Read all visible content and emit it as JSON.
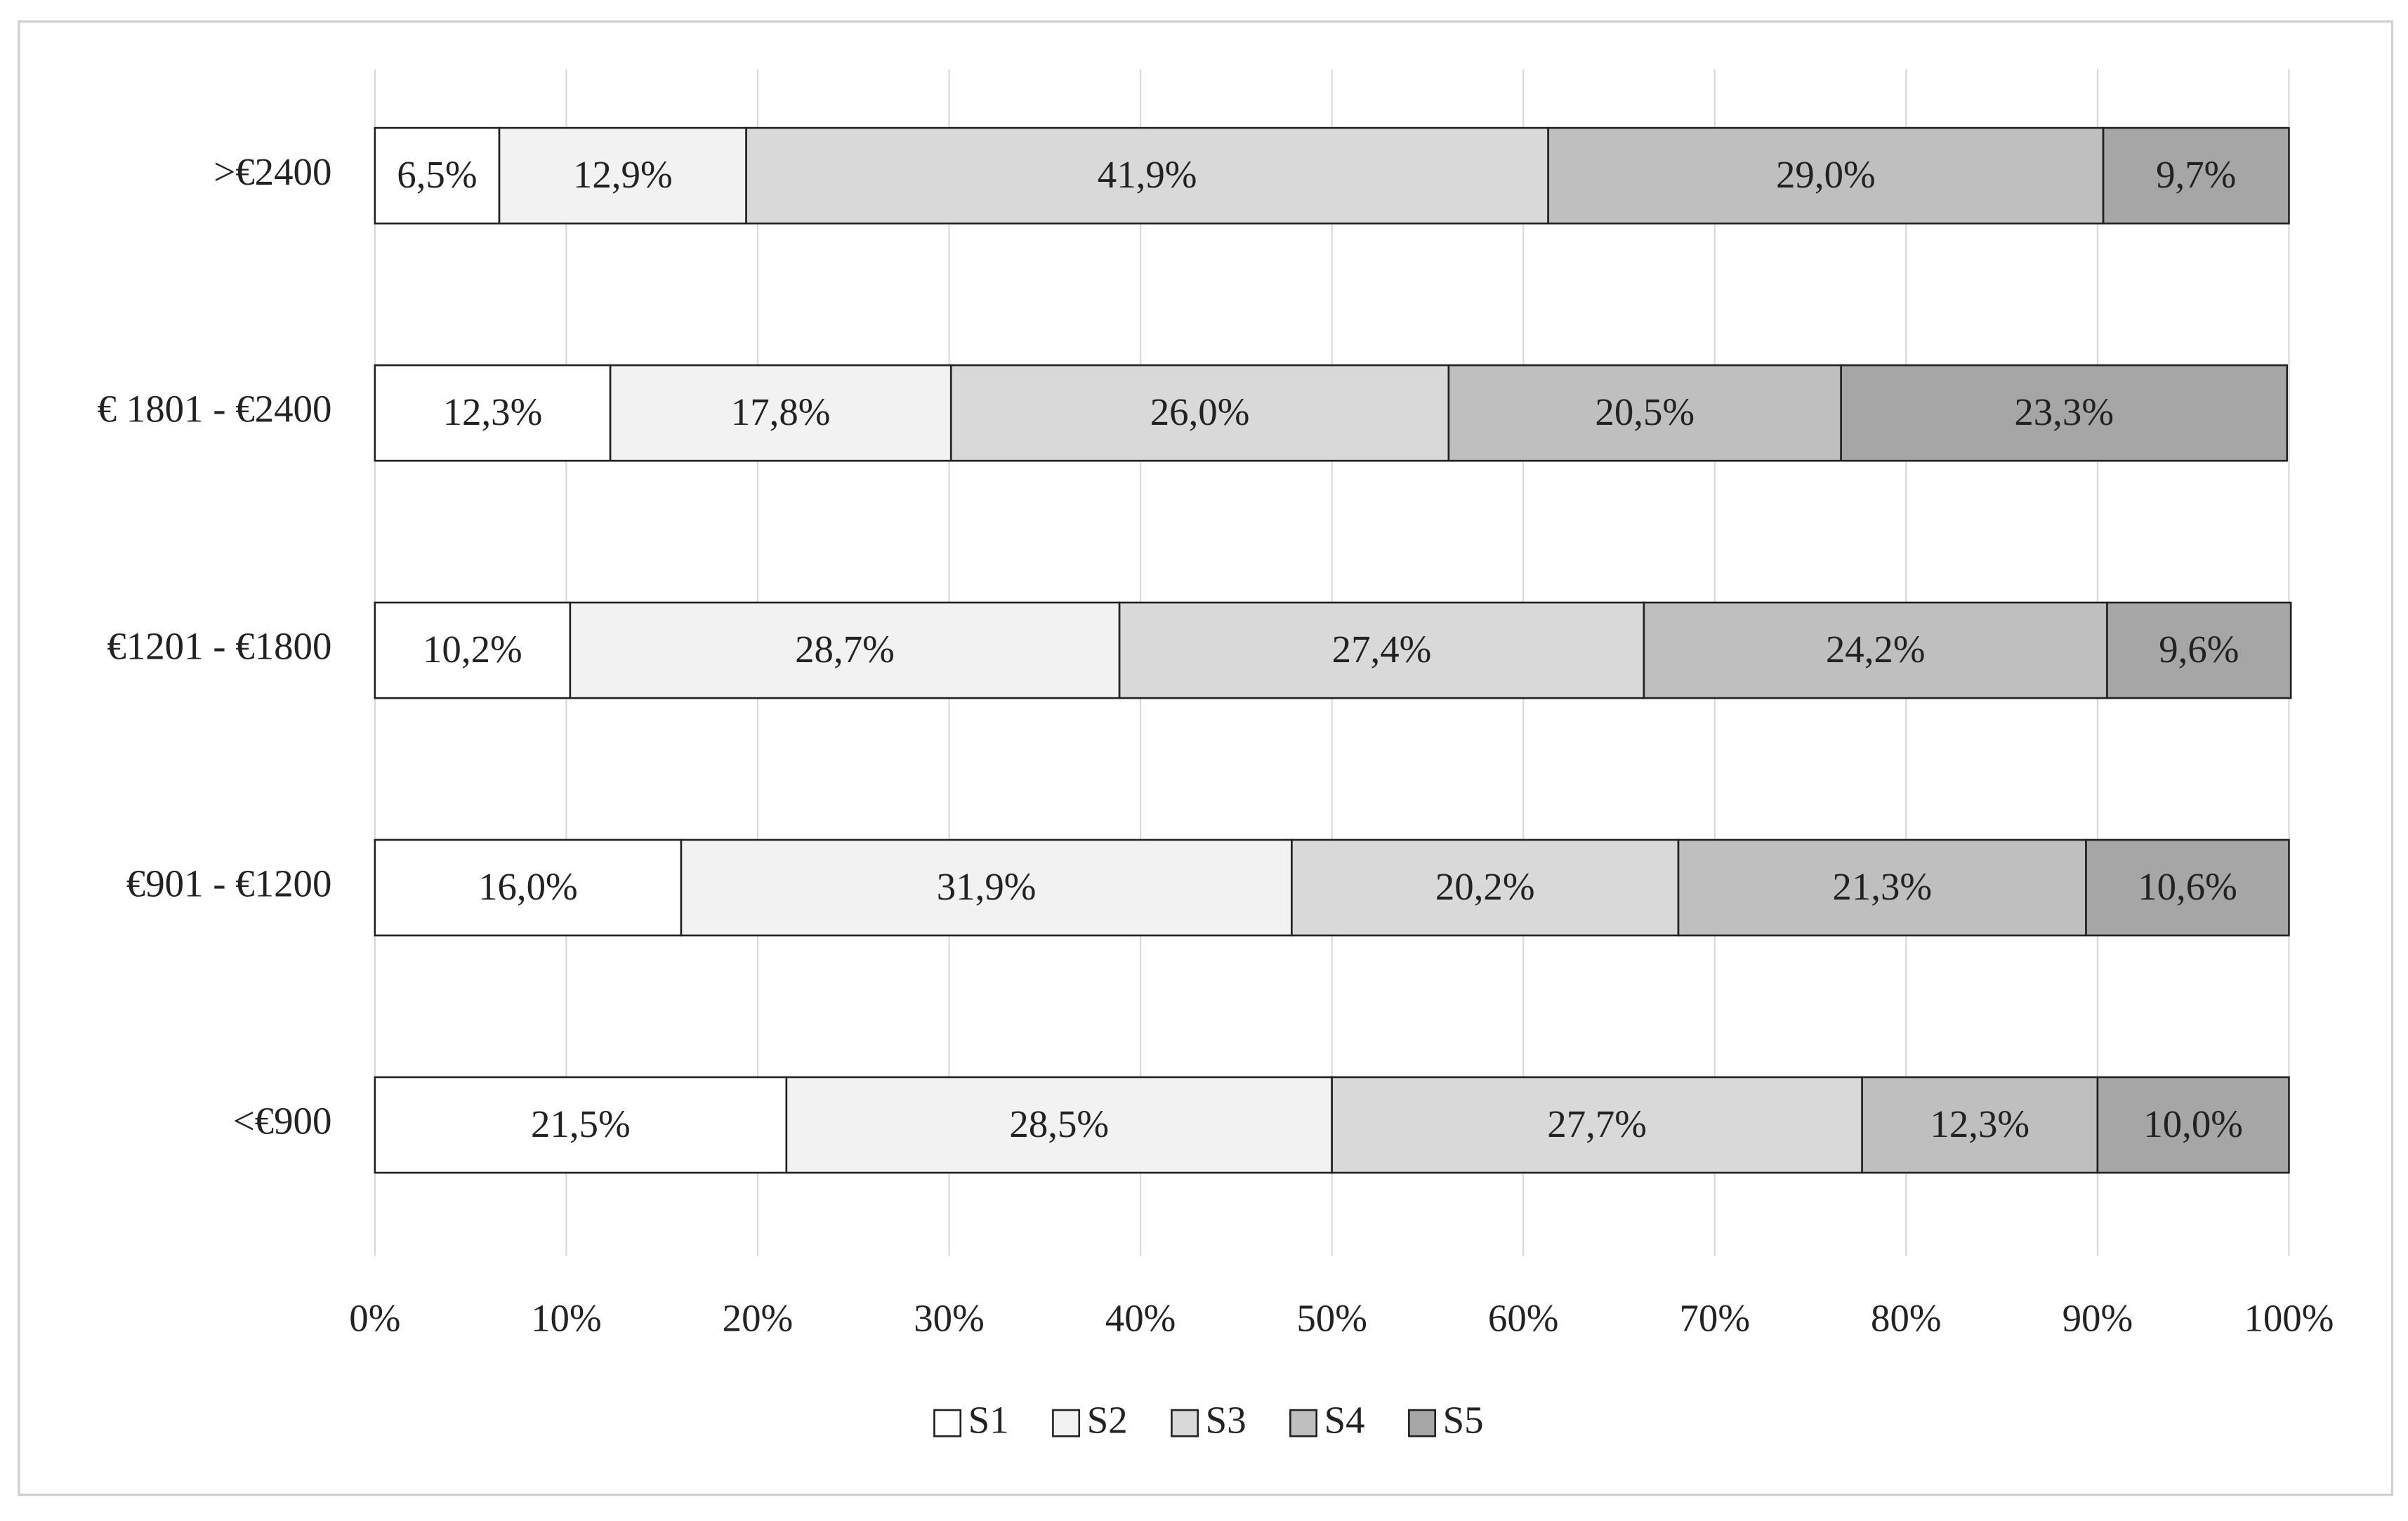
{
  "chart_data": {
    "type": "bar",
    "orientation": "horizontal",
    "stacked": true,
    "categories": [
      ">€2400",
      "€ 1801 - €2400",
      "€1201 - €1800",
      "€901 - €1200",
      "<€900"
    ],
    "series": [
      {
        "name": "S1",
        "color": "#ffffff",
        "values": [
          6.5,
          12.3,
          10.2,
          16.0,
          21.5
        ],
        "value_labels": [
          "6,5%",
          "12,3%",
          "10,2%",
          "16,0%",
          "21,5%"
        ]
      },
      {
        "name": "S2",
        "color": "#f2f2f2",
        "values": [
          12.9,
          17.8,
          28.7,
          31.9,
          28.5
        ],
        "value_labels": [
          "12,9%",
          "17,8%",
          "28,7%",
          "31,9%",
          "28,5%"
        ]
      },
      {
        "name": "S3",
        "color": "#d9d9d9",
        "values": [
          41.9,
          26.0,
          27.4,
          20.2,
          27.7
        ],
        "value_labels": [
          "41,9%",
          "26,0%",
          "27,4%",
          "20,2%",
          "27,7%"
        ]
      },
      {
        "name": "S4",
        "color": "#bfbfbf",
        "values": [
          29.0,
          20.5,
          24.2,
          21.3,
          12.3
        ],
        "value_labels": [
          "29,0%",
          "20,5%",
          "24,2%",
          "21,3%",
          "12,3%"
        ]
      },
      {
        "name": "S5",
        "color": "#a6a6a6",
        "values": [
          9.7,
          23.3,
          9.6,
          10.6,
          10.0
        ],
        "value_labels": [
          "9,7%",
          "23,3%",
          "9,6%",
          "10,6%",
          "10,0%"
        ]
      }
    ],
    "xlim": [
      0,
      100
    ],
    "xticks": [
      {
        "value": 0,
        "label": "0%"
      },
      {
        "value": 10,
        "label": "10%"
      },
      {
        "value": 20,
        "label": "20%"
      },
      {
        "value": 30,
        "label": "30%"
      },
      {
        "value": 40,
        "label": "40%"
      },
      {
        "value": 50,
        "label": "50%"
      },
      {
        "value": 60,
        "label": "60%"
      },
      {
        "value": 70,
        "label": "70%"
      },
      {
        "value": 80,
        "label": "80%"
      },
      {
        "value": 90,
        "label": "90%"
      },
      {
        "value": 100,
        "label": "100%"
      }
    ],
    "grid": true,
    "legend": "bottom"
  }
}
